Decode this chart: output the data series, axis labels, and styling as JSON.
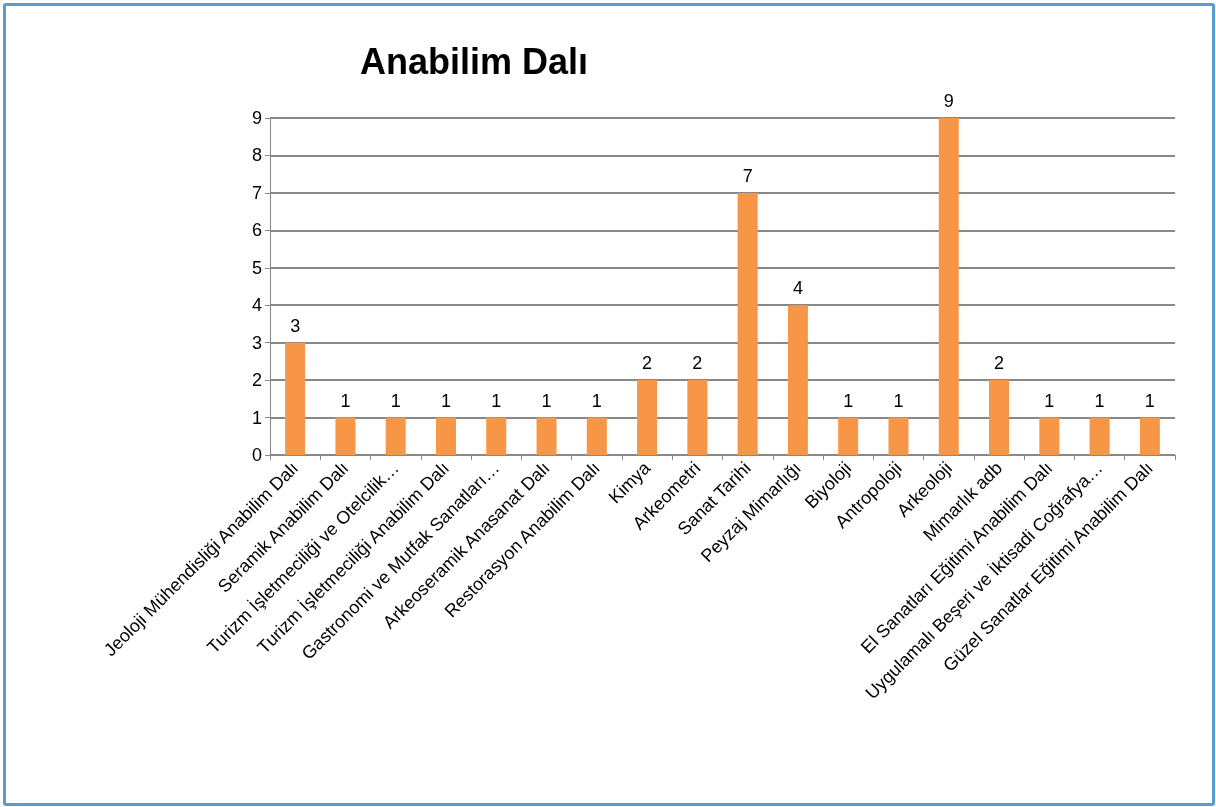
{
  "chart_data": {
    "type": "bar",
    "title": "Anabilim Dalı",
    "categories": [
      "Jeoloji Mühendisliği Anabilim Dalı",
      "Seramik Anabilim Dalı",
      "Turizm İşletmeciliği ve Otelcilik…",
      "Turizm İşletmeciliği Anabilim Dalı",
      "Gastronomi ve Mutfak Sanatları…",
      "Arkeoseramik Anasanat Dalı",
      "Restorasyon Anabilim Dalı",
      "Kimya",
      "Arkeometri",
      "Sanat Tarihi",
      "Peyzaj Mimarlığı",
      "Biyoloji",
      "Antropoloji",
      "Arkeoloji",
      "Mimarlık adb",
      "El Sanatları Eğitimi Anabilim Dalı",
      "Uygulamalı Beşeri ve İktisadi Coğrafya…",
      "Güzel Sanatlar Eğitimi Anabilim Dalı"
    ],
    "values": [
      3,
      1,
      1,
      1,
      1,
      1,
      1,
      2,
      2,
      7,
      4,
      1,
      1,
      9,
      2,
      1,
      1,
      1
    ],
    "color": "#f79646",
    "ylim": [
      0,
      9
    ],
    "yticks": [
      0,
      1,
      2,
      3,
      4,
      5,
      6,
      7,
      8,
      9
    ],
    "grid": "y",
    "data_labels": true
  }
}
